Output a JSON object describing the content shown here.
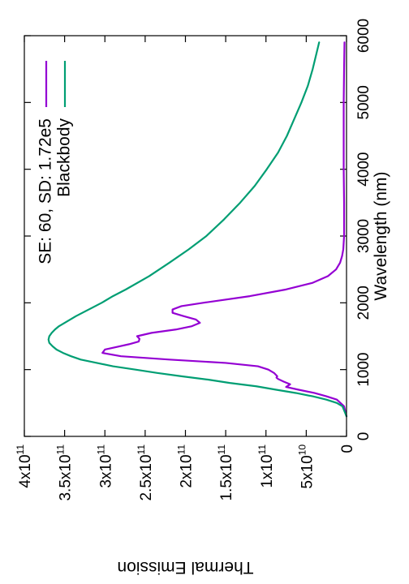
{
  "chart_data": {
    "type": "line",
    "orientation": "rotated 90° clockwise (x axis runs down the right side, y axis along the bottom)",
    "xlabel": "Wavelength (nm)",
    "ylabel": "Thermal Emission",
    "xlim": [
      0,
      6000
    ],
    "ylim": [
      0,
      400000000000.0
    ],
    "x_ticks": [
      {
        "value": 0,
        "label": "0"
      },
      {
        "value": 1000,
        "label": "1000"
      },
      {
        "value": 2000,
        "label": "2000"
      },
      {
        "value": 3000,
        "label": "3000"
      },
      {
        "value": 4000,
        "label": "4000"
      },
      {
        "value": 5000,
        "label": "5000"
      },
      {
        "value": 6000,
        "label": "6000"
      }
    ],
    "y_ticks": [
      {
        "value": 0,
        "mantissa": "0",
        "exp": ""
      },
      {
        "value": 50000000000.0,
        "mantissa": "5x10",
        "exp": "10"
      },
      {
        "value": 100000000000.0,
        "mantissa": "1x10",
        "exp": "11"
      },
      {
        "value": 150000000000.0,
        "mantissa": "1.5x10",
        "exp": "11"
      },
      {
        "value": 200000000000.0,
        "mantissa": "2x10",
        "exp": "11"
      },
      {
        "value": 250000000000.0,
        "mantissa": "2.5x10",
        "exp": "11"
      },
      {
        "value": 300000000000.0,
        "mantissa": "3x10",
        "exp": "11"
      },
      {
        "value": 350000000000.0,
        "mantissa": "3.5x10",
        "exp": "11"
      },
      {
        "value": 400000000000.0,
        "mantissa": "4x10",
        "exp": "11"
      }
    ],
    "legend_position": "top-right (rotated)",
    "grid": false,
    "series": [
      {
        "name": "SE: 60, SD: 1.72e5",
        "color": "#9400d3",
        "x": [
          300,
          450,
          550,
          600,
          650,
          700,
          740,
          780,
          820,
          860,
          880,
          900,
          950,
          1000,
          1050,
          1100,
          1150,
          1200,
          1250,
          1300,
          1340,
          1380,
          1420,
          1460,
          1500,
          1550,
          1600,
          1650,
          1700,
          1750,
          1800,
          1850,
          1900,
          1950,
          2000,
          2100,
          2200,
          2300,
          2400,
          2500,
          2600,
          2700,
          2800,
          3000,
          3500,
          4000,
          4500,
          5000,
          5500,
          5900
        ],
        "y": [
          0,
          3000000000.0,
          12000000000.0,
          25000000000.0,
          40000000000.0,
          60000000000.0,
          75000000000.0,
          70000000000.0,
          78000000000.0,
          85000000000.0,
          87000000000.0,
          86000000000.0,
          90000000000.0,
          97000000000.0,
          110000000000.0,
          150000000000.0,
          220000000000.0,
          280000000000.0,
          303000000000.0,
          300000000000.0,
          285000000000.0,
          270000000000.0,
          258000000000.0,
          257000000000.0,
          260000000000.0,
          242000000000.0,
          212000000000.0,
          192000000000.0,
          182000000000.0,
          187000000000.0,
          202000000000.0,
          216000000000.0,
          216000000000.0,
          205000000000.0,
          178000000000.0,
          120000000000.0,
          75000000000.0,
          42000000000.0,
          23000000000.0,
          13000000000.0,
          8000000000.0,
          5500000000.0,
          4000000000.0,
          3000000000.0,
          3000000000.0,
          3500000000.0,
          3500000000.0,
          3500000000.0,
          3000000000.0,
          2500000000.0
        ]
      },
      {
        "name": "Blackbody",
        "color": "#009e73",
        "x": [
          300,
          450,
          500,
          550,
          600,
          650,
          700,
          750,
          800,
          850,
          900,
          950,
          1000,
          1050,
          1100,
          1150,
          1200,
          1250,
          1300,
          1350,
          1400,
          1450,
          1500,
          1550,
          1600,
          1650,
          1700,
          1750,
          1800,
          1900,
          2000,
          2100,
          2200,
          2400,
          2600,
          2800,
          3000,
          3250,
          3500,
          3750,
          4000,
          4250,
          4500,
          4750,
          5000,
          5250,
          5500,
          5750,
          5900
        ],
        "y": [
          0,
          5000000000.0,
          12000000000.0,
          25000000000.0,
          42000000000.0,
          63000000000.0,
          88000000000.0,
          112000000000.0,
          145000000000.0,
          172000000000.0,
          205000000000.0,
          235000000000.0,
          262000000000.0,
          290000000000.0,
          310000000000.0,
          330000000000.0,
          342000000000.0,
          352000000000.0,
          360000000000.0,
          365000000000.0,
          369000000000.0,
          370000000000.0,
          369000000000.0,
          366000000000.0,
          362000000000.0,
          357000000000.0,
          350000000000.0,
          343000000000.0,
          336000000000.0,
          320000000000.0,
          304000000000.0,
          290000000000.0,
          274000000000.0,
          245000000000.0,
          220000000000.0,
          196000000000.0,
          174000000000.0,
          152000000000.0,
          132000000000.0,
          114000000000.0,
          99000000000.0,
          85000000000.0,
          74000000000.0,
          65000000000.0,
          56000000000.0,
          48000000000.0,
          42000000000.0,
          37000000000.0,
          34000000000.0
        ]
      }
    ]
  }
}
